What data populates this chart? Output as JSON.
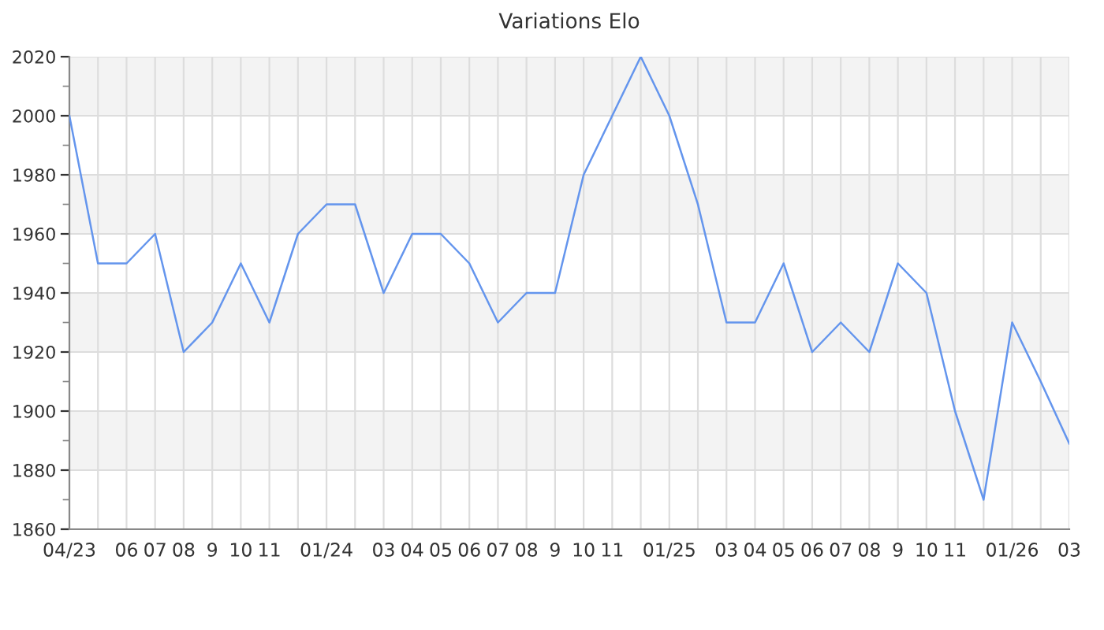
{
  "chart_data": {
    "type": "line",
    "title": "Variations Elo",
    "categories": [
      "04/23",
      null,
      "06",
      "07",
      "08",
      "9",
      "10",
      "11",
      null,
      "01/24",
      null,
      "03",
      "04",
      "05",
      "06",
      "07",
      "08",
      "9",
      "10",
      "11",
      null,
      "01/25",
      null,
      "03",
      "04",
      "05",
      "06",
      "07",
      "08",
      "9",
      "10",
      "11",
      null,
      "01/26",
      null,
      "03"
    ],
    "series": [
      {
        "color": "#6495ed",
        "values": [
          2000,
          1950,
          1950,
          1960,
          1920,
          1930,
          1950,
          1930,
          1960,
          1970,
          1970,
          1940,
          1960,
          1960,
          1950,
          1930,
          1940,
          1940,
          1980,
          2000,
          2020,
          2000,
          1970,
          1930,
          1930,
          1950,
          1920,
          1930,
          1920,
          1950,
          1940,
          1900,
          1870,
          1930,
          1910,
          1889
        ]
      }
    ],
    "ylim": [
      1860,
      2020
    ],
    "yticks": [
      1860,
      1880,
      1900,
      1920,
      1940,
      1960,
      1980,
      2000,
      2020
    ],
    "grid": true,
    "marker": "none",
    "line_style": "solid",
    "legend": false
  }
}
